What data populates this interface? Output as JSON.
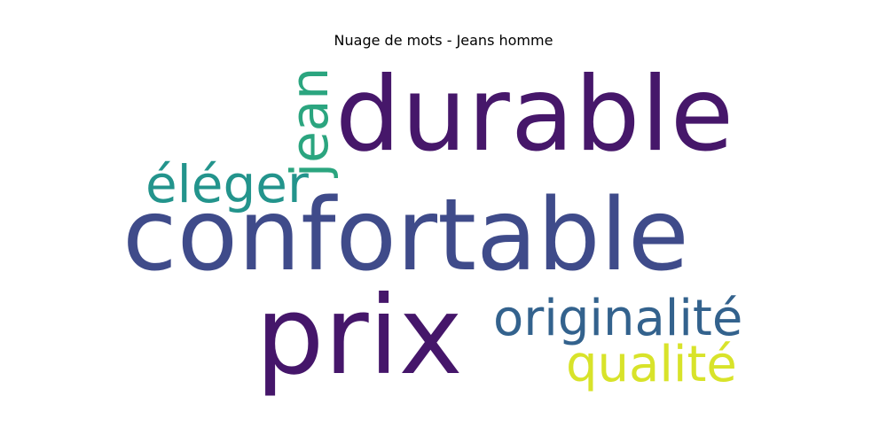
{
  "title": "Nuage de mots - Jeans homme",
  "words": {
    "durable": {
      "text": "durable",
      "color": "#46176a"
    },
    "confortable": {
      "text": "confortable",
      "color": "#3f4b8a"
    },
    "prix": {
      "text": "prix",
      "color": "#45166a"
    },
    "eleger": {
      "text": "éléger",
      "color": "#23948c"
    },
    "jean": {
      "text": "jean",
      "color": "#2ba57f"
    },
    "originalite": {
      "text": "originalité",
      "color": "#33628d"
    },
    "qualite": {
      "text": "qualité",
      "color": "#d8e32a"
    }
  }
}
